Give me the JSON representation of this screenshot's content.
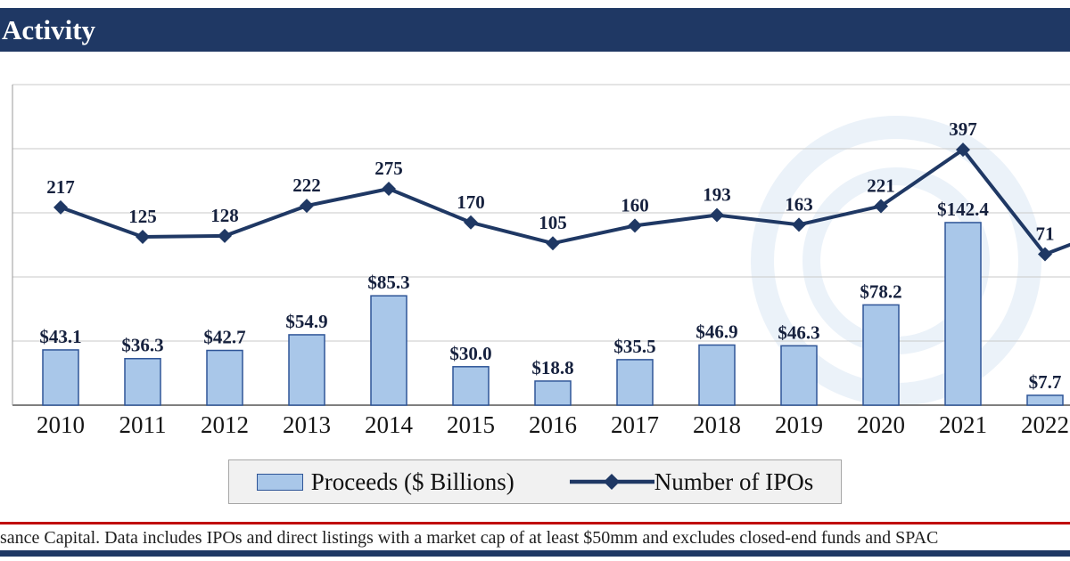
{
  "header": {
    "title": "Activity"
  },
  "legend": {
    "proceeds_label": "Proceeds ($ Billions)",
    "ipos_label": "Number of IPOs"
  },
  "footnote": {
    "text": "sance Capital. Data includes IPOs and direct listings with a market cap of at least $50mm and excludes closed-end funds and SPAC"
  },
  "colors": {
    "title_bg": "#1F3864",
    "bar_fill": "#A9C7E9",
    "bar_border": "#2F5597",
    "line": "#1F3864",
    "red_rule": "#C00000",
    "gridline": "#c9c9c9",
    "watermark": "#e3edf7"
  },
  "chart_data": {
    "type": "bar",
    "subtype": "combo-bar-line",
    "title": "Activity",
    "categories": [
      "2010",
      "2011",
      "2012",
      "2013",
      "2014",
      "2015",
      "2016",
      "2017",
      "2018",
      "2019",
      "2020",
      "2021",
      "2022"
    ],
    "series": [
      {
        "name": "Proceeds ($ Billions)",
        "type": "bar",
        "values": [
          43.1,
          36.3,
          42.7,
          54.9,
          85.3,
          30.0,
          18.8,
          35.5,
          46.9,
          46.3,
          78.2,
          142.4,
          7.7
        ],
        "label_format": "$#.#"
      },
      {
        "name": "Number of IPOs",
        "type": "line",
        "values": [
          217,
          125,
          128,
          222,
          275,
          170,
          105,
          160,
          193,
          163,
          221,
          397,
          71
        ]
      }
    ],
    "bar_ylim": [
      0,
      250
    ],
    "line_ylim": [
      -400,
      600
    ],
    "gridlines": 5,
    "grid": "horizontal",
    "legend_position": "bottom",
    "xlabel": "",
    "ylabel": ""
  }
}
